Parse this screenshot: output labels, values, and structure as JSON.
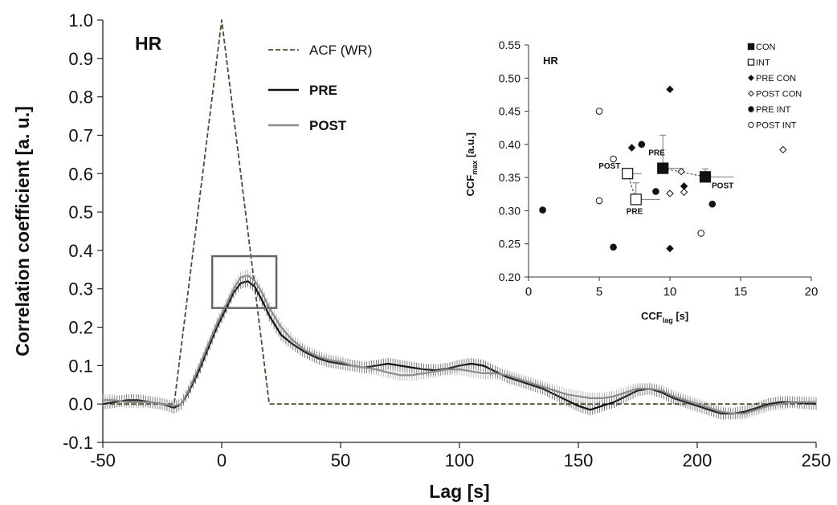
{
  "chart_data": [
    {
      "type": "line",
      "panel_label": "HR",
      "xlabel": "Lag [s]",
      "ylabel": "Correlation coefficient [a. u.]",
      "xlim": [
        -50,
        250
      ],
      "ylim": [
        -0.1,
        1.0
      ],
      "xticks": [
        -50,
        0,
        50,
        100,
        150,
        200,
        250
      ],
      "xtick_labels": [
        "-50",
        "0",
        "50",
        "100",
        "150",
        "200",
        "250"
      ],
      "yticks": [
        -0.1,
        0.0,
        0.1,
        0.2,
        0.3,
        0.4,
        0.5,
        0.6,
        0.7,
        0.8,
        0.9,
        1.0
      ],
      "ytick_labels": [
        "-0.1",
        "0.0",
        "0.1",
        "0.2",
        "0.3",
        "0.4",
        "0.5",
        "0.6",
        "0.7",
        "0.8",
        "0.9",
        "1.0"
      ],
      "grid": false,
      "legend_position": "top-center",
      "highlight_box": {
        "x": [
          -4,
          23
        ],
        "y": [
          0.25,
          0.385
        ]
      },
      "series": [
        {
          "name": "ACF (WR)",
          "style": "dashed",
          "color": "#4d4a2e",
          "x": [
            -50,
            -20,
            0,
            20,
            250
          ],
          "y": [
            0.0,
            0.0,
            1.0,
            0.0,
            0.0
          ]
        },
        {
          "name": "PRE",
          "style": "solid",
          "color": "#111111",
          "error": 0.015,
          "x": [
            -50,
            -45,
            -40,
            -35,
            -30,
            -25,
            -20,
            -17,
            -14,
            -10,
            -6,
            -2,
            2,
            5,
            8,
            11,
            14,
            17,
            20,
            25,
            30,
            35,
            40,
            45,
            50,
            55,
            60,
            65,
            70,
            75,
            80,
            85,
            90,
            95,
            100,
            105,
            110,
            115,
            120,
            125,
            130,
            135,
            140,
            145,
            150,
            155,
            160,
            165,
            170,
            175,
            180,
            185,
            190,
            195,
            200,
            205,
            210,
            215,
            220,
            225,
            230,
            235,
            240,
            245,
            250
          ],
          "y": [
            0.0,
            0.005,
            0.01,
            0.01,
            0.005,
            0.0,
            -0.01,
            0.0,
            0.03,
            0.08,
            0.14,
            0.2,
            0.25,
            0.29,
            0.315,
            0.32,
            0.305,
            0.27,
            0.23,
            0.18,
            0.155,
            0.135,
            0.12,
            0.11,
            0.105,
            0.1,
            0.095,
            0.1,
            0.105,
            0.1,
            0.095,
            0.09,
            0.088,
            0.092,
            0.1,
            0.105,
            0.1,
            0.085,
            0.07,
            0.06,
            0.05,
            0.04,
            0.025,
            0.01,
            -0.005,
            -0.015,
            -0.005,
            0.005,
            0.02,
            0.035,
            0.04,
            0.03,
            0.015,
            0.005,
            -0.005,
            -0.015,
            -0.025,
            -0.025,
            -0.02,
            -0.01,
            0.0,
            0.005,
            0.005,
            0.002,
            0.0
          ]
        },
        {
          "name": "POST",
          "style": "solid",
          "color": "#8c8c8c",
          "error": 0.015,
          "x": [
            -50,
            -45,
            -40,
            -35,
            -30,
            -25,
            -20,
            -17,
            -14,
            -10,
            -6,
            -2,
            2,
            5,
            8,
            11,
            14,
            17,
            20,
            25,
            30,
            35,
            40,
            45,
            50,
            55,
            60,
            65,
            70,
            75,
            80,
            85,
            90,
            95,
            100,
            105,
            110,
            115,
            120,
            125,
            130,
            135,
            140,
            145,
            150,
            155,
            160,
            165,
            170,
            175,
            180,
            185,
            190,
            195,
            200,
            205,
            210,
            215,
            220,
            225,
            230,
            235,
            240,
            245,
            250
          ],
          "y": [
            0.01,
            0.01,
            0.005,
            0.005,
            0.005,
            0.0,
            -0.005,
            0.0,
            0.035,
            0.09,
            0.15,
            0.21,
            0.26,
            0.3,
            0.33,
            0.335,
            0.32,
            0.29,
            0.25,
            0.2,
            0.165,
            0.14,
            0.125,
            0.115,
            0.11,
            0.1,
            0.095,
            0.09,
            0.082,
            0.075,
            0.075,
            0.08,
            0.085,
            0.09,
            0.09,
            0.085,
            0.08,
            0.08,
            0.075,
            0.065,
            0.055,
            0.045,
            0.035,
            0.025,
            0.02,
            0.015,
            0.015,
            0.02,
            0.03,
            0.04,
            0.04,
            0.035,
            0.02,
            0.01,
            0.0,
            -0.01,
            -0.02,
            -0.025,
            -0.025,
            -0.015,
            -0.005,
            0.0,
            0.005,
            0.005,
            0.005
          ]
        }
      ]
    },
    {
      "type": "scatter",
      "panel_label": "HR",
      "xlabel": "CCF",
      "xlabel_subscript": "lag",
      "xlabel_suffix": " [s]",
      "ylabel": "CCF",
      "ylabel_subscript": "max",
      "ylabel_suffix": " [a.u.]",
      "xlim": [
        0,
        20
      ],
      "ylim": [
        0.2,
        0.55
      ],
      "xticks": [
        0,
        5,
        10,
        15,
        20
      ],
      "xtick_labels": [
        "0",
        "5",
        "10",
        "15",
        "20"
      ],
      "yticks": [
        0.2,
        0.25,
        0.3,
        0.35,
        0.4,
        0.45,
        0.5,
        0.55
      ],
      "ytick_labels": [
        "0.20",
        "0.25",
        "0.30",
        "0.35",
        "0.40",
        "0.45",
        "0.50",
        "0.55"
      ],
      "grid": false,
      "legend_position": "top-right",
      "legend": [
        "CON",
        "INT",
        "PRE CON",
        "POST CON",
        "PRE INT",
        "POST INT"
      ],
      "series": [
        {
          "name": "PRE CON",
          "marker": "diamond-filled",
          "points": [
            [
              7.3,
              0.395
            ],
            [
              10.0,
              0.483
            ],
            [
              11.0,
              0.337
            ],
            [
              10.0,
              0.243
            ]
          ]
        },
        {
          "name": "POST CON",
          "marker": "diamond-open",
          "points": [
            [
              10.0,
              0.326
            ],
            [
              10.8,
              0.359
            ],
            [
              11.0,
              0.328
            ],
            [
              18.0,
              0.392
            ]
          ]
        },
        {
          "name": "PRE INT",
          "marker": "circle-filled",
          "points": [
            [
              1.0,
              0.301
            ],
            [
              6.0,
              0.245
            ],
            [
              8.0,
              0.4
            ],
            [
              9.0,
              0.329
            ],
            [
              13.0,
              0.31
            ]
          ]
        },
        {
          "name": "POST INT",
          "marker": "circle-open",
          "points": [
            [
              5.0,
              0.45
            ],
            [
              5.0,
              0.315
            ],
            [
              6.0,
              0.378
            ],
            [
              12.2,
              0.266
            ]
          ]
        },
        {
          "name": "CON",
          "marker": "square-filled",
          "points": [
            [
              9.5,
              0.364
            ],
            [
              12.5,
              0.351
            ]
          ],
          "point_labels": [
            "PRE",
            "POST"
          ],
          "error_y": [
            0.05,
            0.012
          ],
          "error_x": [
            1.5,
            2.0
          ]
        },
        {
          "name": "INT",
          "marker": "square-open",
          "points": [
            [
              7.0,
              0.356
            ],
            [
              7.6,
              0.317
            ]
          ],
          "point_labels": [
            "POST",
            "PRE"
          ],
          "error_y": [
            0.008,
            0.025
          ],
          "error_x": [
            1.0,
            1.7
          ]
        }
      ]
    }
  ]
}
